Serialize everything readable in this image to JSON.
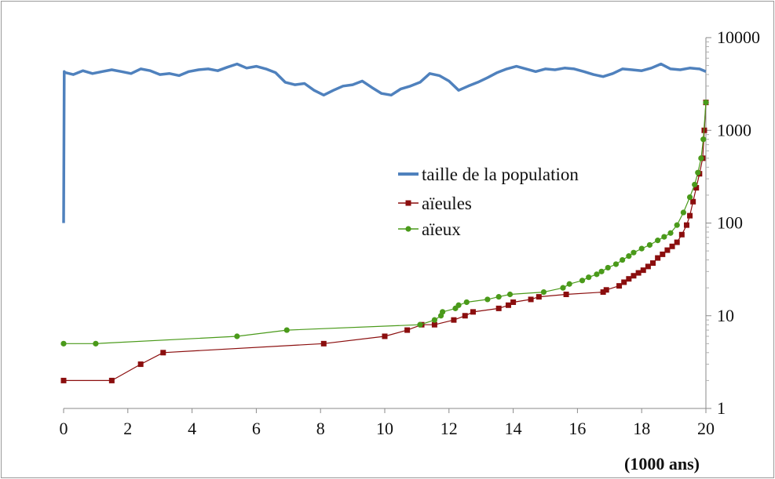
{
  "chart_data": {
    "type": "line",
    "xlabel": "(1000 ans)",
    "ylabel": "",
    "title": "",
    "xlim": [
      0,
      20
    ],
    "ylim": [
      1,
      10000
    ],
    "yscale": "log",
    "grid": false,
    "legend_position": "center-right",
    "x_ticks": [
      "0",
      "2",
      "4",
      "6",
      "8",
      "10",
      "12",
      "14",
      "16",
      "18",
      "20"
    ],
    "y_ticks": [
      "1",
      "10",
      "100",
      "1000",
      "10000"
    ],
    "colors": {
      "population": "#4f81bd",
      "aieules": "#8b0e0e",
      "aieux": "#4a9a1a"
    },
    "series": [
      {
        "name": "taille de la population",
        "marker": "none",
        "x": [
          0,
          0.02,
          0.05,
          0.3,
          0.6,
          0.9,
          1.2,
          1.5,
          1.8,
          2.1,
          2.4,
          2.7,
          3.0,
          3.3,
          3.6,
          3.9,
          4.2,
          4.5,
          4.8,
          5.1,
          5.4,
          5.7,
          6.0,
          6.3,
          6.6,
          6.9,
          7.2,
          7.5,
          7.8,
          8.1,
          8.4,
          8.7,
          9.0,
          9.3,
          9.6,
          9.9,
          10.2,
          10.5,
          10.8,
          11.1,
          11.4,
          11.7,
          12.0,
          12.3,
          12.6,
          12.9,
          13.2,
          13.5,
          13.8,
          14.1,
          14.4,
          14.7,
          15.0,
          15.3,
          15.6,
          15.9,
          16.2,
          16.5,
          16.8,
          17.1,
          17.4,
          17.7,
          18.0,
          18.3,
          18.6,
          18.9,
          19.2,
          19.5,
          19.8,
          20
        ],
        "y": [
          100,
          4300,
          4200,
          4000,
          4400,
          4100,
          4300,
          4500,
          4300,
          4100,
          4600,
          4400,
          4000,
          4100,
          3900,
          4300,
          4500,
          4600,
          4400,
          4800,
          5200,
          4700,
          4900,
          4600,
          4200,
          3300,
          3100,
          3200,
          2700,
          2400,
          2700,
          3000,
          3100,
          3400,
          2900,
          2500,
          2400,
          2800,
          3000,
          3300,
          4100,
          3900,
          3400,
          2700,
          3000,
          3300,
          3700,
          4200,
          4600,
          4900,
          4600,
          4300,
          4600,
          4500,
          4700,
          4600,
          4300,
          4000,
          3800,
          4100,
          4600,
          4500,
          4400,
          4700,
          5200,
          4600,
          4500,
          4700,
          4600,
          4300
        ]
      },
      {
        "name": "aïeules",
        "marker": "square",
        "x": [
          0,
          1.5,
          2.4,
          3.1,
          8.1,
          10.0,
          10.7,
          11.15,
          11.55,
          12.15,
          12.5,
          12.75,
          13.55,
          13.85,
          14.0,
          14.55,
          14.8,
          15.65,
          16.8,
          16.9,
          17.3,
          17.45,
          17.6,
          17.75,
          17.9,
          18.05,
          18.2,
          18.35,
          18.5,
          18.65,
          18.8,
          18.95,
          19.1,
          19.25,
          19.4,
          19.5,
          19.6,
          19.7,
          19.8,
          19.9,
          19.95,
          20
        ],
        "y": [
          2,
          2,
          3,
          4,
          5,
          6,
          7,
          8,
          8,
          9,
          10,
          11,
          12,
          13,
          14,
          15,
          16,
          17,
          18,
          19,
          21,
          23,
          25,
          27,
          29,
          31,
          34,
          37,
          42,
          46,
          51,
          56,
          62,
          75,
          95,
          120,
          170,
          240,
          340,
          500,
          1000,
          2000
        ]
      },
      {
        "name": "aïeux",
        "marker": "circle",
        "x": [
          0,
          1.0,
          5.4,
          6.95,
          11.1,
          11.55,
          11.75,
          11.8,
          12.2,
          12.3,
          12.55,
          13.2,
          13.55,
          13.9,
          14.95,
          15.55,
          15.75,
          16.15,
          16.35,
          16.6,
          16.75,
          16.95,
          17.2,
          17.4,
          17.6,
          17.75,
          18.0,
          18.25,
          18.5,
          18.7,
          18.9,
          19.1,
          19.3,
          19.5,
          19.65,
          19.75,
          19.85,
          19.92,
          20
        ],
        "y": [
          5,
          5,
          6,
          7,
          8,
          9,
          10,
          11,
          12,
          13,
          14,
          15,
          16,
          17,
          18,
          20,
          22,
          24,
          26,
          28,
          30,
          33,
          36,
          40,
          44,
          48,
          53,
          58,
          65,
          71,
          78,
          95,
          130,
          190,
          260,
          350,
          500,
          800,
          2000
        ]
      }
    ]
  }
}
